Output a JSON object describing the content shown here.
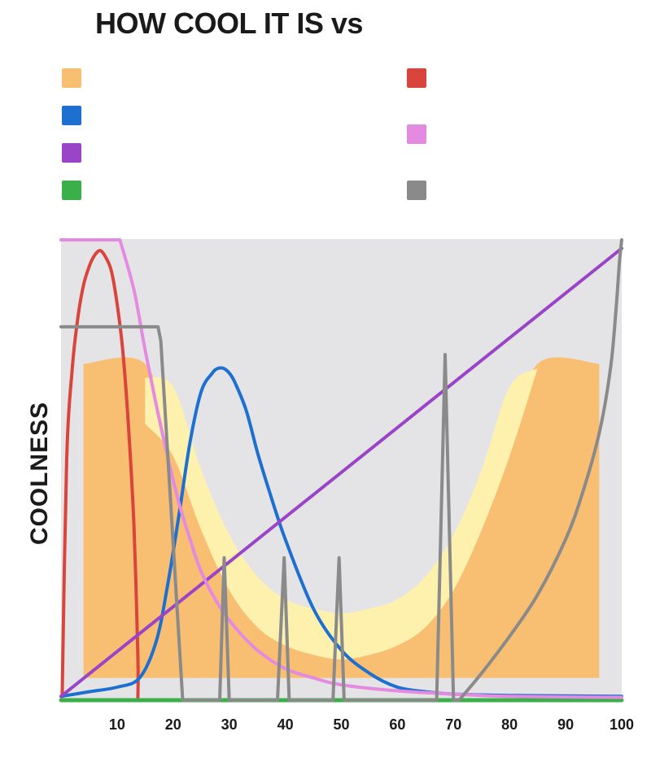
{
  "chart_data": {
    "type": "line",
    "title": "HOW COOL IT IS vs",
    "xlabel": "",
    "ylabel": "COOLNESS",
    "xlim": [
      0,
      100
    ],
    "ylim": [
      0,
      100
    ],
    "x_ticks": [
      10,
      20,
      30,
      40,
      50,
      60,
      70,
      80,
      90,
      100
    ],
    "grid": false,
    "legend": "top",
    "series": [
      {
        "key": "orange",
        "kind": "band",
        "color": "#f8be72",
        "x": [
          4,
          15,
          20,
          25,
          30,
          35,
          40,
          45,
          50,
          55,
          60,
          65,
          70,
          75,
          80,
          85,
          96
        ],
        "lower": [
          5,
          5,
          5,
          5,
          5,
          5,
          5,
          5,
          5,
          5,
          5,
          5,
          5,
          5,
          5,
          5,
          5
        ],
        "upper": [
          73,
          73,
          54,
          38,
          25,
          17,
          13,
          11,
          10,
          11,
          13,
          17,
          25,
          38,
          54,
          73,
          73
        ]
      },
      {
        "key": "yellow",
        "kind": "band",
        "color": "#fdf1ad",
        "x": [
          15,
          20,
          25,
          30,
          35,
          40,
          45,
          50,
          55,
          60,
          65,
          70,
          75,
          80,
          85
        ],
        "lower": [
          60,
          53,
          37,
          24,
          16,
          12,
          10,
          9,
          10,
          12,
          16,
          24,
          37,
          53,
          72
        ],
        "upper": [
          70,
          68,
          50,
          36,
          27,
          22,
          20,
          19,
          20,
          22,
          27,
          36,
          50,
          68,
          72
        ]
      },
      {
        "key": "red",
        "kind": "line",
        "color": "#d9443d",
        "x": [
          0.2,
          1,
          2,
          3,
          4,
          5,
          6,
          7,
          8,
          9,
          10,
          11,
          12,
          13,
          13.7,
          13.7
        ],
        "y": [
          1,
          52,
          72,
          83,
          90,
          94,
          96.5,
          97.5,
          96,
          93,
          86,
          76,
          60,
          38,
          10,
          0
        ]
      },
      {
        "key": "blue",
        "kind": "line",
        "color": "#1d6fd0",
        "x": [
          0,
          5,
          10,
          14,
          17,
          19,
          21,
          23,
          25,
          27,
          28,
          29,
          30,
          31,
          33,
          35,
          37,
          40,
          45,
          50,
          55,
          60,
          65,
          70,
          80,
          100
        ],
        "y": [
          1,
          2,
          3,
          5,
          13,
          25,
          40,
          56,
          67,
          71,
          72,
          72,
          71,
          69,
          63,
          54,
          46,
          35,
          20,
          11,
          6,
          3,
          2,
          1.5,
          1.2,
          1
        ]
      },
      {
        "key": "purple",
        "kind": "line",
        "color": "#9a44c8",
        "x": [
          0,
          100
        ],
        "y": [
          1,
          98
        ]
      },
      {
        "key": "green",
        "kind": "line",
        "color": "#3bb04a",
        "x": [
          0,
          100
        ],
        "y": [
          0,
          0
        ]
      },
      {
        "key": "pink",
        "kind": "line",
        "color": "#e48ae0",
        "x": [
          0,
          10.5,
          13,
          15,
          17,
          19,
          21,
          23,
          25,
          28,
          31,
          35,
          40,
          45,
          50,
          60,
          70,
          80,
          100
        ],
        "y": [
          100,
          100,
          89,
          76,
          64,
          53,
          43,
          35,
          28,
          21,
          16,
          11,
          7,
          5,
          3.5,
          2.2,
          1.5,
          1,
          0.8
        ]
      },
      {
        "key": "gray",
        "kind": "line",
        "color": "#8a8a8a",
        "x": [
          0,
          17.3,
          17.8,
          21.7,
          28.3,
          29.1,
          30.0,
          38.6,
          39.8,
          40.7,
          48.5,
          49.6,
          50.5,
          67.0,
          68.5,
          70.0,
          71.0,
          75,
          80,
          85,
          90,
          93,
          96,
          98,
          99,
          99.6,
          100
        ],
        "y": [
          81,
          81,
          78,
          0,
          0,
          31,
          0,
          0,
          31,
          0,
          0,
          31,
          0,
          0,
          75,
          0,
          0,
          6,
          14,
          23,
          35,
          45,
          58,
          72,
          85,
          95,
          100
        ]
      }
    ],
    "legend_entries": [
      {
        "color": "#f8be72"
      },
      {
        "color": "#1d6fd0"
      },
      {
        "color": "#9a44c8"
      },
      {
        "color": "#3bb04a"
      },
      {
        "color": "#d9443d"
      },
      {
        "color": "#e48ae0"
      },
      {
        "color": "#8a8a8a"
      }
    ],
    "plot_background": "#e4e4e6"
  }
}
